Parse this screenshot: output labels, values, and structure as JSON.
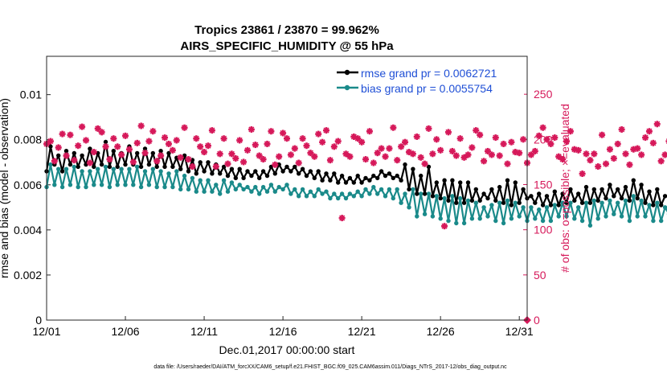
{
  "chart_data": {
    "type": "line",
    "title": "Tropics 23861 / 23870 = 99.962%",
    "subtitle": "AIRS_SPECIFIC_HUMIDITY @ 55 hPa",
    "xlabel": "Dec.01,2017 00:00:00 start",
    "ylabel": "rmse and bias (model - observation)",
    "y2label": "# of obs: o=possible; ×=evaluated",
    "footnote": "data file: /Users/raeder/DAI/ATM_forcXX/CAM6_setup/f.e21.FHIST_BGC.f09_025.CAM6assim.011/Diags_NTrS_2017-12/obs_diag_output.nc",
    "x_ticks": [
      "12/01",
      "12/06",
      "12/11",
      "12/16",
      "12/21",
      "12/26",
      "12/31"
    ],
    "x_tick_days": [
      0,
      5,
      10,
      15,
      20,
      25,
      30
    ],
    "xlim": [
      0,
      30.5
    ],
    "ylim": [
      0,
      0.0117
    ],
    "y_ticks": [
      0,
      0.002,
      0.004,
      0.006,
      0.008,
      0.01
    ],
    "y_tick_labels": [
      "0",
      "0.002",
      "0.004",
      "0.006",
      "0.008",
      "0.01"
    ],
    "y2lim": [
      0,
      292
    ],
    "y2_ticks": [
      0,
      50,
      100,
      150,
      200,
      250
    ],
    "y2_tick_labels": [
      "0",
      "50",
      "100",
      "150",
      "200",
      "250"
    ],
    "step_days": 0.25,
    "colors": {
      "rmse": "#000000",
      "bias": "#1a8a8a",
      "obs": "#d6195a",
      "axis_right": "#d6195a",
      "legend_text": "#1f4fd6"
    },
    "series": [
      {
        "name": "rmse grand pr = 0.0062721",
        "key": "rmse",
        "values": [
          0.0066,
          0.0077,
          0.0069,
          0.0073,
          0.0066,
          0.0075,
          0.0069,
          0.0074,
          0.0068,
          0.0073,
          0.0069,
          0.0076,
          0.0068,
          0.0074,
          0.0069,
          0.0079,
          0.0068,
          0.0075,
          0.0068,
          0.0074,
          0.0069,
          0.0077,
          0.0069,
          0.0074,
          0.0068,
          0.0076,
          0.0069,
          0.0074,
          0.0068,
          0.0075,
          0.0068,
          0.0074,
          0.0068,
          0.0072,
          0.0067,
          0.0073,
          0.0066,
          0.0071,
          0.0065,
          0.007,
          0.0066,
          0.007,
          0.0065,
          0.0069,
          0.0065,
          0.0068,
          0.0064,
          0.0067,
          0.0063,
          0.0067,
          0.0063,
          0.0066,
          0.0064,
          0.0066,
          0.0063,
          0.0066,
          0.0064,
          0.0068,
          0.0065,
          0.0069,
          0.0066,
          0.0068,
          0.0066,
          0.0068,
          0.0065,
          0.0067,
          0.0064,
          0.0066,
          0.0063,
          0.0066,
          0.0062,
          0.0065,
          0.0062,
          0.0065,
          0.0061,
          0.0064,
          0.0061,
          0.0063,
          0.0061,
          0.0064,
          0.0061,
          0.0063,
          0.0062,
          0.0064,
          0.0063,
          0.0066,
          0.0064,
          0.0065,
          0.0063,
          0.0064,
          0.0062,
          0.0069,
          0.0058,
          0.0067,
          0.0056,
          0.0064,
          0.0056,
          0.0068,
          0.0055,
          0.0061,
          0.0054,
          0.0062,
          0.0053,
          0.0062,
          0.0052,
          0.0061,
          0.0052,
          0.0061,
          0.0053,
          0.0058,
          0.0053,
          0.0056,
          0.0054,
          0.0058,
          0.0053,
          0.0059,
          0.0052,
          0.0062,
          0.0051,
          0.0061,
          0.0052,
          0.0058,
          0.0054,
          0.0055,
          0.0052,
          0.0056,
          0.0051,
          0.0055,
          0.0051,
          0.0057,
          0.0051,
          0.0056,
          0.0052,
          0.0058,
          0.0053,
          0.0056,
          0.0052,
          0.0059,
          0.0052,
          0.0058,
          0.0053,
          0.0058,
          0.0054,
          0.006,
          0.0055,
          0.0058,
          0.0054,
          0.0059,
          0.0053,
          0.0062,
          0.0054,
          0.006,
          0.0052,
          0.0057,
          0.0051,
          0.0058,
          0.0051,
          0.0055,
          0.0055,
          0.0056
        ]
      },
      {
        "name": "bias grand pr = 0.0055754",
        "key": "bias",
        "values": [
          0.0059,
          0.0069,
          0.006,
          0.0067,
          0.0059,
          0.0067,
          0.006,
          0.0068,
          0.0059,
          0.0066,
          0.0059,
          0.0066,
          0.006,
          0.0067,
          0.006,
          0.0068,
          0.0059,
          0.0067,
          0.006,
          0.0067,
          0.006,
          0.0067,
          0.006,
          0.0068,
          0.0059,
          0.0066,
          0.006,
          0.0067,
          0.0059,
          0.0066,
          0.0059,
          0.0065,
          0.0059,
          0.0066,
          0.0058,
          0.0064,
          0.0058,
          0.0063,
          0.0057,
          0.0062,
          0.0057,
          0.0062,
          0.0057,
          0.006,
          0.0056,
          0.0062,
          0.0057,
          0.0061,
          0.0058,
          0.006,
          0.0058,
          0.0059,
          0.0057,
          0.0059,
          0.0056,
          0.0059,
          0.0057,
          0.006,
          0.0057,
          0.0059,
          0.0058,
          0.006,
          0.0056,
          0.0058,
          0.0055,
          0.0058,
          0.0055,
          0.0057,
          0.0055,
          0.0058,
          0.0056,
          0.0057,
          0.0054,
          0.0056,
          0.0054,
          0.0056,
          0.0054,
          0.0056,
          0.0055,
          0.0057,
          0.0055,
          0.0058,
          0.0056,
          0.0059,
          0.0056,
          0.0058,
          0.0055,
          0.0058,
          0.0054,
          0.0058,
          0.0052,
          0.0056,
          0.005,
          0.0058,
          0.0046,
          0.0056,
          0.0047,
          0.0056,
          0.0046,
          0.0055,
          0.0045,
          0.0054,
          0.0044,
          0.0055,
          0.0043,
          0.0054,
          0.0043,
          0.0053,
          0.0045,
          0.0052,
          0.0045,
          0.005,
          0.0046,
          0.0051,
          0.0044,
          0.0052,
          0.0043,
          0.0053,
          0.0045,
          0.0052,
          0.0046,
          0.005,
          0.0044,
          0.005,
          0.0045,
          0.0049,
          0.0044,
          0.005,
          0.0044,
          0.0051,
          0.0046,
          0.0052,
          0.0046,
          0.0052,
          0.0045,
          0.005,
          0.0044,
          0.0052,
          0.0042,
          0.0053,
          0.0045,
          0.0052,
          0.0046,
          0.0053,
          0.0047,
          0.0052,
          0.0046,
          0.0053,
          0.0044,
          0.0055,
          0.0046,
          0.0053,
          0.0046,
          0.0051,
          0.0044,
          0.0052,
          0.0044,
          0.005,
          0.0047,
          0.005
        ]
      }
    ],
    "obs_evaluated": {
      "name": "# of obs evaluated",
      "values": [
        195,
        198,
        176,
        191,
        206,
        182,
        205,
        177,
        193,
        214,
        199,
        174,
        186,
        212,
        208,
        192,
        178,
        201,
        192,
        183,
        204,
        189,
        175,
        196,
        215,
        185,
        198,
        209,
        176,
        182,
        202,
        195,
        188,
        199,
        180,
        213,
        178,
        170,
        201,
        192,
        186,
        193,
        210,
        170,
        184,
        201,
        173,
        184,
        179,
        199,
        175,
        188,
        211,
        194,
        182,
        178,
        195,
        209,
        172,
        181,
        207,
        201,
        183,
        190,
        174,
        201,
        193,
        185,
        181,
        206,
        197,
        210,
        177,
        192,
        198,
        113,
        184,
        181,
        203,
        201,
        197,
        178,
        209,
        174,
        185,
        190,
        181,
        190,
        213,
        177,
        192,
        197,
        186,
        184,
        203,
        180,
        173,
        212,
        184,
        200,
        188,
        104,
        208,
        187,
        182,
        201,
        180,
        183,
        191,
        210,
        205,
        176,
        187,
        183,
        202,
        182,
        195,
        173,
        197,
        186,
        185,
        200,
        174,
        183,
        187,
        204,
        213,
        200,
        195,
        202,
        181,
        178,
        198,
        209,
        189,
        188,
        162,
        184,
        177,
        184,
        170,
        205,
        173,
        189,
        179,
        195,
        211,
        184,
        172,
        189,
        190,
        183,
        202,
        209,
        196,
        217,
        176,
        183,
        198,
        191,
        201,
        190,
        184
      ]
    },
    "obs_possible_final": {
      "value": 0
    },
    "legend": [
      "rmse grand pr = 0.0062721",
      "bias grand pr = 0.0055754"
    ]
  }
}
